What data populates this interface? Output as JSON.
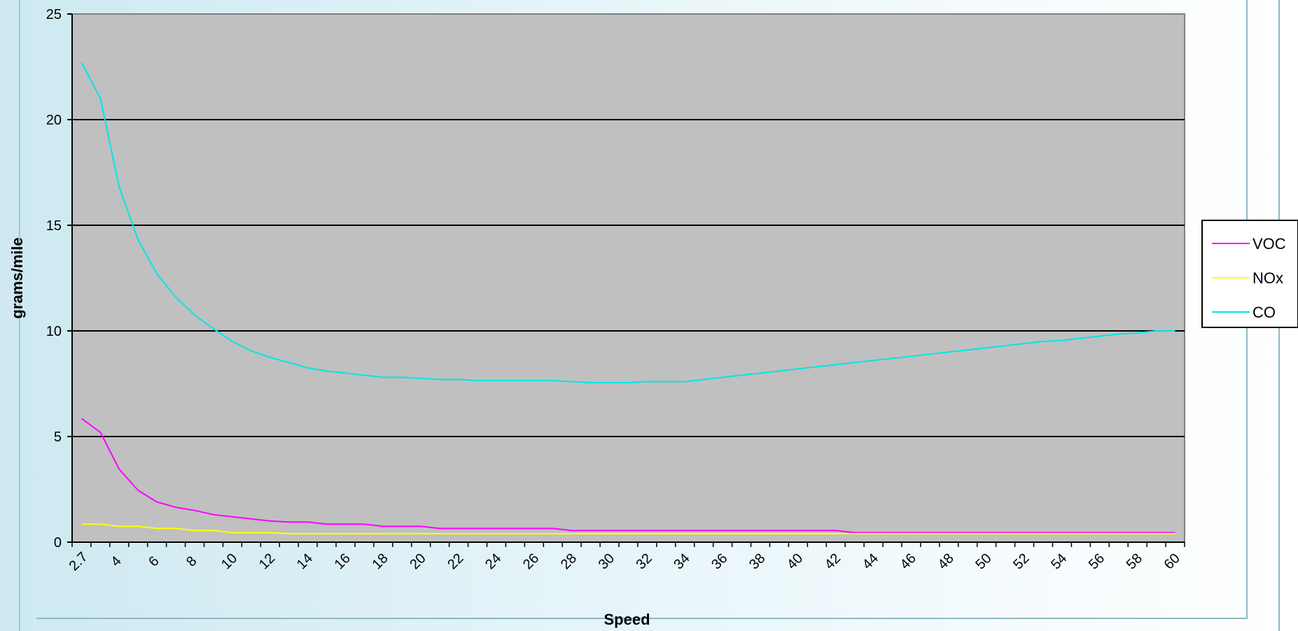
{
  "chart_data": {
    "type": "line",
    "xlabel": "Speed",
    "ylabel": "grams/mile",
    "ylim": [
      0,
      25
    ],
    "yticks": [
      0,
      5,
      10,
      15,
      20,
      25
    ],
    "xticks": [
      "2.7",
      "4",
      "6",
      "8",
      "10",
      "12",
      "14",
      "16",
      "18",
      "20",
      "22",
      "24",
      "26",
      "28",
      "30",
      "32",
      "34",
      "36",
      "38",
      "40",
      "42",
      "44",
      "46",
      "48",
      "50",
      "52",
      "54",
      "56",
      "58",
      "60"
    ],
    "x": [
      "2.7",
      "3",
      "4",
      "5",
      "6",
      "7",
      "8",
      "9",
      "10",
      "11",
      "12",
      "13",
      "14",
      "15",
      "16",
      "17",
      "18",
      "19",
      "20",
      "21",
      "22",
      "23",
      "24",
      "25",
      "26",
      "27",
      "28",
      "29",
      "30",
      "31",
      "32",
      "33",
      "34",
      "35",
      "36",
      "37",
      "38",
      "39",
      "40",
      "41",
      "42",
      "43",
      "44",
      "45",
      "46",
      "47",
      "48",
      "49",
      "50",
      "51",
      "52",
      "53",
      "54",
      "55",
      "56",
      "57",
      "58",
      "59",
      "60"
    ],
    "plot_background": "#c0c0c0",
    "grid": true,
    "legend_position": "right",
    "series": [
      {
        "name": "VOC",
        "color": "#ff00ff",
        "values": [
          5.85,
          5.2,
          3.45,
          2.45,
          1.9,
          1.65,
          1.5,
          1.3,
          1.2,
          1.1,
          1.0,
          0.95,
          0.95,
          0.85,
          0.85,
          0.85,
          0.75,
          0.75,
          0.75,
          0.65,
          0.65,
          0.65,
          0.65,
          0.65,
          0.65,
          0.65,
          0.55,
          0.55,
          0.55,
          0.55,
          0.55,
          0.55,
          0.55,
          0.55,
          0.55,
          0.55,
          0.55,
          0.55,
          0.55,
          0.55,
          0.55,
          0.45,
          0.45,
          0.45,
          0.45,
          0.45,
          0.45,
          0.45,
          0.45,
          0.45,
          0.45,
          0.45,
          0.45,
          0.45,
          0.45,
          0.45,
          0.45,
          0.45,
          0.45
        ]
      },
      {
        "name": "NOx",
        "color": "#ffff00",
        "values": [
          0.85,
          0.85,
          0.75,
          0.75,
          0.65,
          0.65,
          0.55,
          0.55,
          0.45,
          0.45,
          0.45,
          0.4,
          0.4,
          0.4,
          0.4,
          0.4,
          0.4,
          0.4,
          0.4,
          0.4,
          0.4,
          0.4,
          0.4,
          0.4,
          0.4,
          0.4,
          0.4,
          0.4,
          0.4,
          0.4,
          0.4,
          0.4,
          0.4,
          0.4,
          0.4,
          0.4,
          0.4,
          0.4,
          0.4,
          0.4,
          0.4,
          0.4,
          0.4,
          0.4,
          0.4,
          0.4,
          0.4,
          0.4,
          0.4,
          0.4,
          0.4,
          0.4,
          0.4,
          0.4,
          0.4,
          0.4,
          0.4,
          0.4,
          0.4
        ]
      },
      {
        "name": "CO",
        "color": "#00e5e5",
        "values": [
          22.7,
          21.0,
          16.8,
          14.3,
          12.7,
          11.6,
          10.75,
          10.1,
          9.5,
          9.05,
          8.75,
          8.5,
          8.25,
          8.1,
          8.0,
          7.9,
          7.8,
          7.8,
          7.75,
          7.7,
          7.7,
          7.65,
          7.65,
          7.65,
          7.65,
          7.65,
          7.6,
          7.55,
          7.55,
          7.55,
          7.6,
          7.6,
          7.6,
          7.7,
          7.8,
          7.9,
          8.0,
          8.1,
          8.2,
          8.3,
          8.4,
          8.5,
          8.6,
          8.7,
          8.8,
          8.9,
          9.0,
          9.1,
          9.2,
          9.3,
          9.4,
          9.5,
          9.55,
          9.65,
          9.75,
          9.85,
          9.9,
          10.0,
          10.0
        ]
      }
    ]
  }
}
